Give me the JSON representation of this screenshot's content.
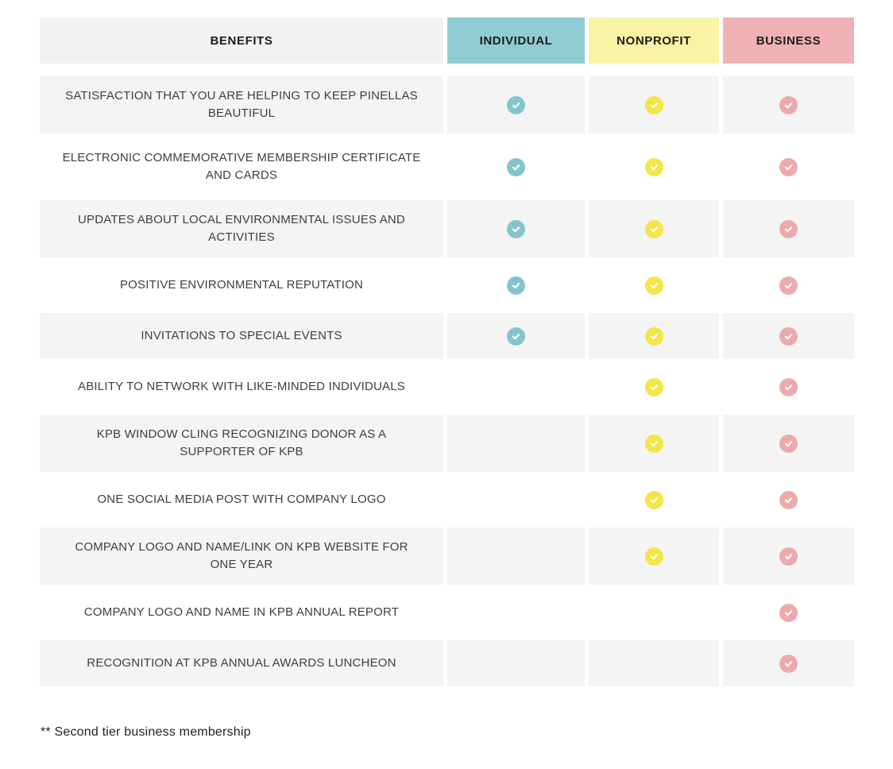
{
  "table": {
    "columns": [
      {
        "id": "benefits",
        "label": "BENEFITS",
        "header_bg": "#f2f2f2",
        "check_color": null
      },
      {
        "id": "individual",
        "label": "INDIVIDUAL",
        "header_bg": "#92ccd3",
        "check_color": "#84c5cc"
      },
      {
        "id": "nonprofit",
        "label": "NONPROFIT",
        "header_bg": "#f9f3a6",
        "check_color": "#f4e549"
      },
      {
        "id": "business",
        "label": "BUSINESS",
        "header_bg": "#f0b2b4",
        "check_color": "#edaaab"
      }
    ],
    "rows": [
      {
        "benefit": "SATISFACTION THAT YOU ARE HELPING TO KEEP PINELLAS BEAUTIFUL",
        "checks": [
          true,
          true,
          true
        ]
      },
      {
        "benefit": "ELECTRONIC COMMEMORATIVE MEMBERSHIP CERTIFICATE AND CARDS",
        "checks": [
          true,
          true,
          true
        ]
      },
      {
        "benefit": "UPDATES ABOUT LOCAL ENVIRONMENTAL ISSUES AND ACTIVITIES",
        "checks": [
          true,
          true,
          true
        ]
      },
      {
        "benefit": "POSITIVE ENVIRONMENTAL REPUTATION",
        "checks": [
          true,
          true,
          true
        ]
      },
      {
        "benefit": "INVITATIONS TO SPECIAL EVENTS",
        "checks": [
          true,
          true,
          true
        ]
      },
      {
        "benefit": "ABILITY TO NETWORK WITH LIKE-MINDED INDIVIDUALS",
        "checks": [
          false,
          true,
          true
        ]
      },
      {
        "benefit": "KPB WINDOW CLING RECOGNIZING DONOR AS A SUPPORTER OF KPB",
        "checks": [
          false,
          true,
          true
        ]
      },
      {
        "benefit": "ONE SOCIAL MEDIA POST WITH COMPANY LOGO",
        "checks": [
          false,
          true,
          true
        ]
      },
      {
        "benefit": "COMPANY LOGO AND NAME/LINK ON KPB WEBSITE FOR ONE YEAR",
        "checks": [
          false,
          true,
          true
        ]
      },
      {
        "benefit": "COMPANY LOGO AND NAME IN KPB ANNUAL REPORT",
        "checks": [
          false,
          false,
          true
        ]
      },
      {
        "benefit": "RECOGNITION AT KPB ANNUAL AWARDS LUNCHEON",
        "checks": [
          false,
          false,
          true
        ]
      }
    ],
    "check_icon": "checkmark",
    "striped_row_bg": "#f4f4f4"
  },
  "footnote": "** Second tier business membership"
}
